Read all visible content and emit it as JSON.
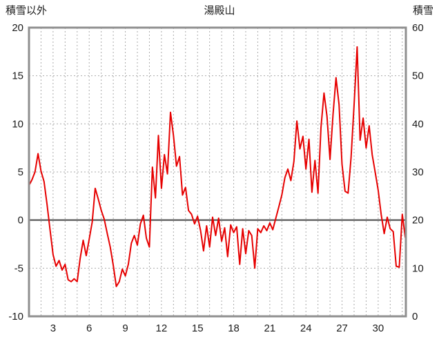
{
  "header": {
    "left_axis_label": "積雪以外",
    "title": "湯殿山",
    "right_axis_label": "積雪"
  },
  "colors": {
    "line": "#e60000",
    "frame": "#8f8f8f",
    "grid": "#aaaaaa",
    "zero_line": "#444444",
    "text": "#1a1a1a",
    "background": "#ffffff"
  },
  "chart_data": {
    "type": "line",
    "title": "湯殿山",
    "x_axis": {
      "tick_labels": [
        3,
        6,
        9,
        12,
        15,
        18,
        21,
        24,
        27,
        30
      ],
      "min": 1,
      "max": 32.3,
      "gridline_every_days": 1
    },
    "y_axis_left": {
      "label": "積雪以外",
      "ticks": [
        20,
        15,
        10,
        5,
        0,
        -5,
        -10
      ],
      "min": -10,
      "max": 20
    },
    "y_axis_right": {
      "label": "積雪",
      "ticks": [
        60,
        50,
        40,
        30,
        20,
        10,
        0
      ],
      "min": 0,
      "max": 60
    },
    "zero_line": true,
    "grid": true,
    "series": [
      {
        "name": "積雪以外",
        "color": "#e60000",
        "x_start_day": 1.0,
        "x_step_days": 0.25,
        "values": [
          3.6,
          4.2,
          5.0,
          6.9,
          5.1,
          4.0,
          1.6,
          -1.0,
          -3.6,
          -4.8,
          -4.2,
          -5.2,
          -4.6,
          -6.2,
          -6.4,
          -6.1,
          -6.4,
          -4.0,
          -2.1,
          -3.7,
          -2.0,
          -0.2,
          3.3,
          2.2,
          1.0,
          0.1,
          -1.4,
          -2.8,
          -4.7,
          -6.9,
          -6.4,
          -5.1,
          -5.8,
          -4.6,
          -2.4,
          -1.6,
          -2.6,
          -0.4,
          0.5,
          -1.9,
          -2.8,
          5.5,
          2.3,
          8.8,
          3.3,
          6.8,
          4.8,
          11.2,
          8.8,
          5.6,
          6.6,
          2.6,
          3.4,
          1.0,
          0.6,
          -0.4,
          0.4,
          -1.1,
          -3.2,
          -0.6,
          -2.8,
          0.3,
          -1.6,
          0.2,
          -2.2,
          -0.8,
          -3.8,
          -0.5,
          -1.3,
          -0.7,
          -4.6,
          -0.9,
          -3.5,
          -1.1,
          -1.6,
          -5.0,
          -0.9,
          -1.3,
          -0.6,
          -1.1,
          -0.3,
          -1.0,
          0.2,
          1.4,
          2.6,
          4.4,
          5.3,
          4.1,
          6.1,
          10.3,
          7.4,
          8.7,
          5.3,
          8.4,
          2.9,
          6.2,
          2.8,
          9.6,
          13.2,
          10.8,
          6.3,
          11.0,
          14.8,
          12.0,
          5.8,
          3.0,
          2.8,
          6.5,
          12.0,
          18.0,
          8.3,
          10.6,
          7.5,
          9.8,
          6.8,
          5.0,
          3.1,
          0.6,
          -1.4,
          0.3,
          -0.9,
          -1.2,
          -4.8,
          -4.9,
          0.6,
          -1.8
        ]
      }
    ]
  }
}
